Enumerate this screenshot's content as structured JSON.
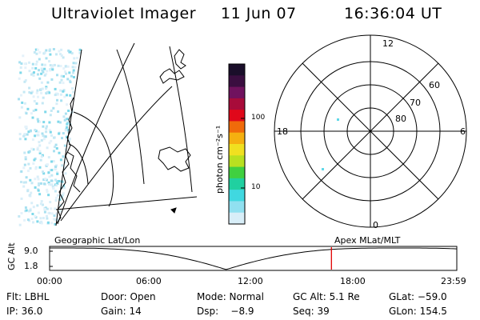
{
  "header": {
    "instrument": "Ultraviolet Imager",
    "date": "11 Jun 07",
    "time": "16:36:04 UT"
  },
  "colorbar": {
    "unit_label": "photon cm⁻²s⁻¹",
    "ticks": [
      "100",
      "10"
    ],
    "colors": [
      "#1a0e2a",
      "#3a0e40",
      "#70125e",
      "#a80c3a",
      "#e0081a",
      "#f06a0a",
      "#f5b010",
      "#f0e020",
      "#b8e020",
      "#40d040",
      "#20d0a0",
      "#40d8e0",
      "#90e0f0",
      "#d8eef8"
    ]
  },
  "polar": {
    "mlt_labels": {
      "top": "12",
      "left": "18",
      "right": "6",
      "bottom": "0"
    },
    "lat_labels": [
      "60",
      "70",
      "80"
    ]
  },
  "timeline": {
    "ylabel": "GC Alt",
    "ymax": "9.0",
    "ymin": "1.8",
    "left_title": "Geographic Lat/Lon",
    "right_title": "Apex MLat/MLT",
    "xticks": [
      "00:00",
      "06:00",
      "12:00",
      "18:00",
      "23:59"
    ],
    "marker_time": "16:36",
    "marker_color": "#e00000"
  },
  "info": {
    "row1": [
      {
        "key": "flt",
        "text": "Flt: LBHL"
      },
      {
        "key": "door",
        "text": "Door: Open"
      },
      {
        "key": "mode",
        "text": "Mode: Normal"
      },
      {
        "key": "gcalt",
        "text": "GC Alt: 5.1 Re"
      },
      {
        "key": "glat",
        "text": "GLat: −59.0"
      }
    ],
    "row2": [
      {
        "key": "ip",
        "text": "IP: 36.0"
      },
      {
        "key": "gain",
        "text": "Gain: 14"
      },
      {
        "key": "dsp",
        "text": "Dsp:    −8.9"
      },
      {
        "key": "seq",
        "text": "Seq: 39"
      },
      {
        "key": "glon",
        "text": "GLon: 154.5"
      }
    ]
  }
}
